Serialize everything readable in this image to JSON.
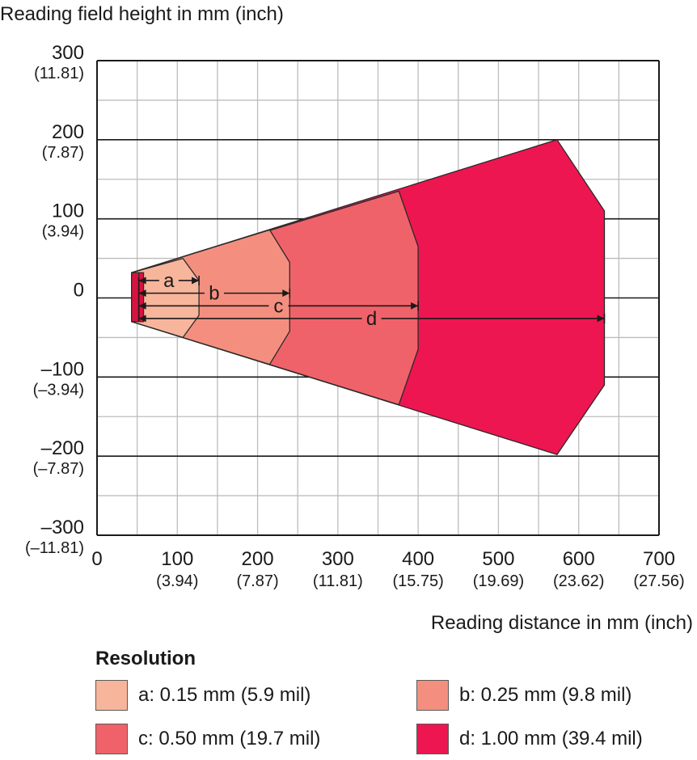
{
  "chart_data": {
    "type": "area",
    "title": "",
    "ylabel": "Reading field height in mm (inch)",
    "xlabel": "Reading distance in mm (inch)",
    "xlim": [
      0,
      700
    ],
    "ylim": [
      -300,
      300
    ],
    "grid": true,
    "x_ticks": [
      {
        "value": 0,
        "label": "0",
        "sublabel": ""
      },
      {
        "value": 100,
        "label": "100",
        "sublabel": "(3.94)"
      },
      {
        "value": 200,
        "label": "200",
        "sublabel": "(7.87)"
      },
      {
        "value": 300,
        "label": "300",
        "sublabel": "(11.81)"
      },
      {
        "value": 400,
        "label": "400",
        "sublabel": "(15.75)"
      },
      {
        "value": 500,
        "label": "500",
        "sublabel": "(19.69)"
      },
      {
        "value": 600,
        "label": "600",
        "sublabel": "(23.62)"
      },
      {
        "value": 700,
        "label": "700",
        "sublabel": "(27.56)"
      }
    ],
    "y_ticks": [
      {
        "value": 300,
        "label": "300",
        "sublabel": "(11.81)"
      },
      {
        "value": 200,
        "label": "200",
        "sublabel": "(7.87)"
      },
      {
        "value": 100,
        "label": "100",
        "sublabel": "(3.94)"
      },
      {
        "value": 0,
        "label": "0",
        "sublabel": ""
      },
      {
        "value": -100,
        "label": "–100",
        "sublabel": "(–3.94)"
      },
      {
        "value": -200,
        "label": "–200",
        "sublabel": "(–7.87)"
      },
      {
        "value": -300,
        "label": "–300",
        "sublabel": "(–11.81)"
      }
    ],
    "legend_title": "Resolution",
    "legend_position": "bottom",
    "series": [
      {
        "key": "d",
        "name": "d: 1.00 mm (39.4 mil)",
        "color": "#ED1650",
        "polygon": [
          [
            43,
            32
          ],
          [
            573,
            200
          ],
          [
            632,
            110
          ],
          [
            632,
            -110
          ],
          [
            573,
            -198
          ],
          [
            43,
            -30
          ]
        ]
      },
      {
        "key": "c",
        "name": "c: 0.50 mm (19.7 mil)",
        "color": "#F0626A",
        "polygon": [
          [
            43,
            32
          ],
          [
            376,
            135
          ],
          [
            400,
            65
          ],
          [
            400,
            -65
          ],
          [
            376,
            -135
          ],
          [
            43,
            -30
          ]
        ]
      },
      {
        "key": "b",
        "name": "b: 0.25 mm (9.8 mil)",
        "color": "#F48F7F",
        "polygon": [
          [
            43,
            32
          ],
          [
            215,
            86
          ],
          [
            240,
            45
          ],
          [
            240,
            -42
          ],
          [
            215,
            -84
          ],
          [
            43,
            -30
          ]
        ]
      },
      {
        "key": "a",
        "name": "a: 0.15 mm (5.9 mil)",
        "color": "#F7B59C",
        "polygon": [
          [
            43,
            32
          ],
          [
            107,
            50
          ],
          [
            127,
            22
          ],
          [
            127,
            -22
          ],
          [
            107,
            -50
          ],
          [
            43,
            -30
          ]
        ]
      }
    ],
    "start_band": {
      "x0": 43,
      "x1": 58,
      "y0": -30,
      "y1": 32,
      "color": "#D8123F",
      "stripe": 52
    },
    "dimensions": [
      {
        "label": "a",
        "x_start": 52,
        "x_end": 127,
        "y": 22
      },
      {
        "label": "b",
        "x_start": 52,
        "x_end": 240,
        "y": 6
      },
      {
        "label": "c",
        "x_start": 52,
        "x_end": 400,
        "y": -10
      },
      {
        "label": "d",
        "x_start": 52,
        "x_end": 632,
        "y": -26
      }
    ]
  },
  "colors": {
    "grid_major": "#1a1a1a",
    "grid_minor": "#bdbdbd",
    "outline": "#2a2a2a"
  }
}
